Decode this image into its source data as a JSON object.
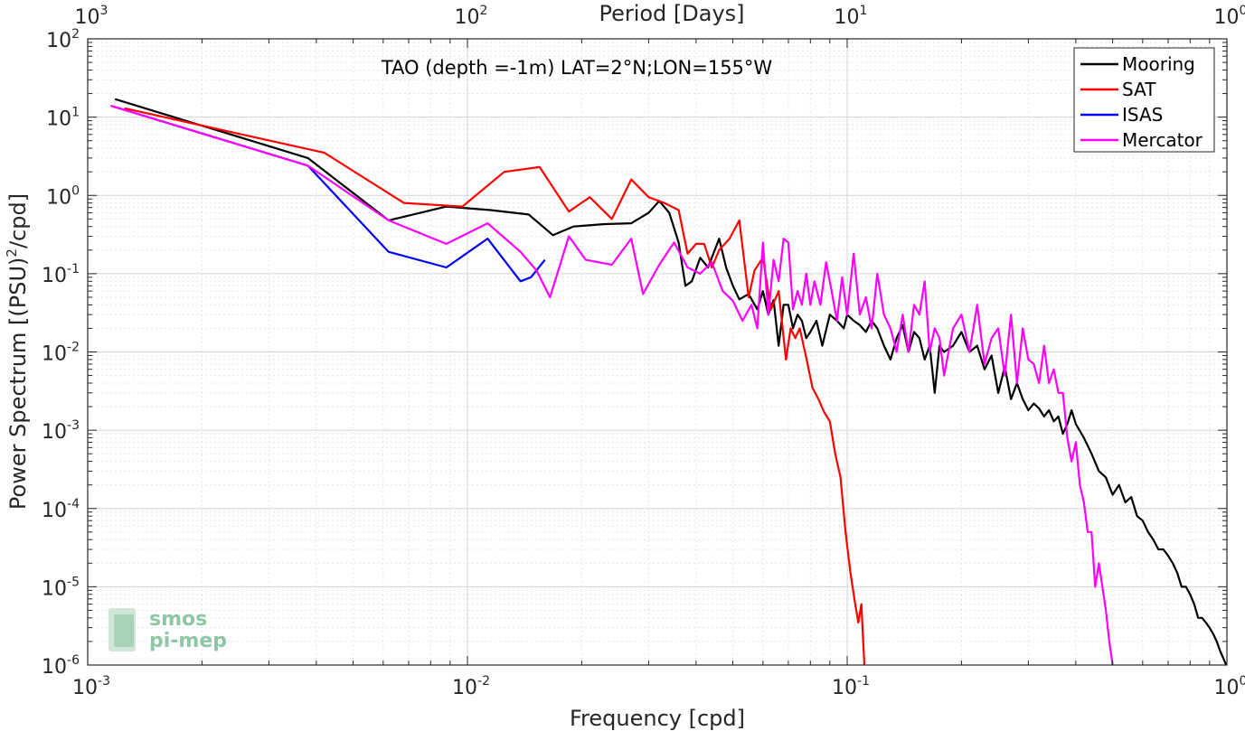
{
  "chart_data": {
    "type": "line",
    "title": "TAO (depth =-1m) LAT=2°N;LON=155°W",
    "xlabel": "Frequency [cpd]",
    "ylabel": "Power Spectrum [(PSU)²/cpd]",
    "ylabel_parts": {
      "main": "Power Spectrum [(PSU)",
      "sup": "2",
      "tail": "/cpd]"
    },
    "x2label": "Period [Days]",
    "xscale": "log",
    "yscale": "log",
    "xlim": [
      0.001,
      1
    ],
    "ylim": [
      1e-06,
      100
    ],
    "grid": true,
    "legend_position": "top-right",
    "x_ticks": [
      {
        "value": 0.001,
        "base": "10",
        "exp": "-3"
      },
      {
        "value": 0.01,
        "base": "10",
        "exp": "-2"
      },
      {
        "value": 0.1,
        "base": "10",
        "exp": "-1"
      },
      {
        "value": 1,
        "base": "10",
        "exp": "0"
      }
    ],
    "x2_ticks": [
      {
        "value": 1000,
        "base": "10",
        "exp": "3"
      },
      {
        "value": 100,
        "base": "10",
        "exp": "2"
      },
      {
        "value": 10,
        "base": "10",
        "exp": "1"
      },
      {
        "value": 1,
        "base": "10",
        "exp": "0"
      }
    ],
    "y_ticks": [
      {
        "value": 1e-06,
        "base": "10",
        "exp": "-6"
      },
      {
        "value": 1e-05,
        "base": "10",
        "exp": "-5"
      },
      {
        "value": 0.0001,
        "base": "10",
        "exp": "-4"
      },
      {
        "value": 0.001,
        "base": "10",
        "exp": "-3"
      },
      {
        "value": 0.01,
        "base": "10",
        "exp": "-2"
      },
      {
        "value": 0.1,
        "base": "10",
        "exp": "-1"
      },
      {
        "value": 1,
        "base": "10",
        "exp": "0"
      },
      {
        "value": 10,
        "base": "10",
        "exp": "1"
      },
      {
        "value": 100,
        "base": "10",
        "exp": "2"
      }
    ],
    "series": [
      {
        "name": "Mooring",
        "color": "#000000",
        "x": [
          0.00118,
          0.0038,
          0.0062,
          0.0088,
          0.0115,
          0.0145,
          0.0168,
          0.019,
          0.023,
          0.027,
          0.03,
          0.032,
          0.034,
          0.036,
          0.0375,
          0.039,
          0.041,
          0.043,
          0.046,
          0.048,
          0.05,
          0.052,
          0.055,
          0.058,
          0.06,
          0.062,
          0.064,
          0.066,
          0.068,
          0.07,
          0.072,
          0.074,
          0.076,
          0.078,
          0.08,
          0.083,
          0.086,
          0.09,
          0.094,
          0.098,
          0.1,
          0.104,
          0.108,
          0.112,
          0.116,
          0.12,
          0.125,
          0.13,
          0.135,
          0.14,
          0.145,
          0.15,
          0.155,
          0.16,
          0.165,
          0.17,
          0.175,
          0.18,
          0.19,
          0.2,
          0.21,
          0.22,
          0.23,
          0.24,
          0.25,
          0.26,
          0.27,
          0.28,
          0.29,
          0.3,
          0.31,
          0.32,
          0.33,
          0.34,
          0.35,
          0.36,
          0.37,
          0.38,
          0.39,
          0.4,
          0.42,
          0.44,
          0.46,
          0.48,
          0.5,
          0.52,
          0.54,
          0.56,
          0.58,
          0.6,
          0.62,
          0.64,
          0.66,
          0.68,
          0.7,
          0.72,
          0.74,
          0.76,
          0.78,
          0.8,
          0.82,
          0.84,
          0.86,
          0.88,
          0.9,
          0.92,
          0.94,
          0.96,
          0.98,
          0.995
        ],
        "y": [
          17,
          3.0,
          0.48,
          0.72,
          0.65,
          0.57,
          0.31,
          0.4,
          0.43,
          0.44,
          0.6,
          0.85,
          0.6,
          0.25,
          0.07,
          0.08,
          0.16,
          0.12,
          0.28,
          0.12,
          0.07,
          0.047,
          0.055,
          0.035,
          0.06,
          0.03,
          0.046,
          0.012,
          0.04,
          0.04,
          0.02,
          0.03,
          0.025,
          0.015,
          0.018,
          0.025,
          0.012,
          0.03,
          0.025,
          0.02,
          0.03,
          0.025,
          0.022,
          0.018,
          0.025,
          0.02,
          0.012,
          0.008,
          0.015,
          0.022,
          0.01,
          0.018,
          0.015,
          0.008,
          0.012,
          0.003,
          0.012,
          0.01,
          0.012,
          0.018,
          0.01,
          0.012,
          0.006,
          0.009,
          0.003,
          0.0065,
          0.0025,
          0.004,
          0.0025,
          0.0018,
          0.0022,
          0.0019,
          0.0015,
          0.0018,
          0.0013,
          0.0015,
          0.0009,
          0.0012,
          0.0018,
          0.0012,
          0.0008,
          0.0005,
          0.0003,
          0.00025,
          0.00015,
          0.0002,
          0.00012,
          0.00014,
          8e-05,
          7e-05,
          5e-05,
          4e-05,
          3e-05,
          3e-05,
          2.5e-05,
          2e-05,
          1.5e-05,
          1e-05,
          1e-05,
          8e-06,
          6e-06,
          4e-06,
          4e-06,
          3.5e-06,
          3e-06,
          2.5e-06,
          2e-06,
          1.5e-06,
          1.2e-06,
          1e-06
        ]
      },
      {
        "name": "SAT",
        "color": "#ff0000",
        "x": [
          0.00125,
          0.0042,
          0.0068,
          0.0097,
          0.0125,
          0.0155,
          0.0185,
          0.021,
          0.024,
          0.027,
          0.03,
          0.033,
          0.036,
          0.038,
          0.04,
          0.042,
          0.044,
          0.046,
          0.049,
          0.052,
          0.055,
          0.057,
          0.06,
          0.063,
          0.066,
          0.069,
          0.071,
          0.073,
          0.075,
          0.078,
          0.081,
          0.084,
          0.087,
          0.09,
          0.093,
          0.096,
          0.099,
          0.102,
          0.105,
          0.107,
          0.109,
          0.111
        ],
        "y": [
          13,
          3.5,
          0.8,
          0.72,
          2.0,
          2.3,
          0.62,
          0.95,
          0.5,
          1.6,
          0.95,
          0.8,
          0.65,
          0.18,
          0.24,
          0.24,
          0.12,
          0.2,
          0.28,
          0.48,
          0.05,
          0.11,
          0.16,
          0.035,
          0.06,
          0.008,
          0.02,
          0.015,
          0.02,
          0.0085,
          0.0035,
          0.0025,
          0.0017,
          0.0013,
          0.0005,
          0.00025,
          5e-05,
          1.5e-05,
          6e-06,
          3.5e-06,
          6e-06,
          1e-06
        ]
      },
      {
        "name": "ISAS",
        "color": "#0000ff",
        "x": [
          0.00115,
          0.0038,
          0.0062,
          0.0088,
          0.0113,
          0.0138,
          0.0147,
          0.016
        ],
        "y": [
          14,
          2.4,
          0.19,
          0.12,
          0.28,
          0.08,
          0.09,
          0.15
        ]
      },
      {
        "name": "Mercator",
        "color": "#ff00ff",
        "x": [
          0.00115,
          0.0038,
          0.0062,
          0.0088,
          0.0113,
          0.0138,
          0.0152,
          0.0165,
          0.0185,
          0.0205,
          0.024,
          0.027,
          0.029,
          0.032,
          0.035,
          0.038,
          0.041,
          0.044,
          0.047,
          0.05,
          0.053,
          0.056,
          0.058,
          0.06,
          0.062,
          0.064,
          0.066,
          0.068,
          0.07,
          0.072,
          0.074,
          0.076,
          0.078,
          0.08,
          0.082,
          0.085,
          0.088,
          0.091,
          0.094,
          0.097,
          0.1,
          0.104,
          0.108,
          0.112,
          0.116,
          0.12,
          0.125,
          0.13,
          0.135,
          0.14,
          0.145,
          0.15,
          0.155,
          0.16,
          0.165,
          0.17,
          0.175,
          0.18,
          0.19,
          0.2,
          0.21,
          0.22,
          0.23,
          0.24,
          0.25,
          0.26,
          0.27,
          0.28,
          0.29,
          0.3,
          0.31,
          0.32,
          0.33,
          0.34,
          0.35,
          0.36,
          0.37,
          0.38,
          0.39,
          0.4,
          0.41,
          0.42,
          0.43,
          0.44,
          0.45,
          0.46,
          0.47,
          0.48,
          0.49,
          0.5
        ],
        "y": [
          14,
          2.4,
          0.48,
          0.24,
          0.44,
          0.19,
          0.11,
          0.05,
          0.3,
          0.15,
          0.13,
          0.28,
          0.055,
          0.13,
          0.25,
          0.12,
          0.1,
          0.14,
          0.06,
          0.045,
          0.025,
          0.04,
          0.02,
          0.25,
          0.03,
          0.15,
          0.08,
          0.28,
          0.25,
          0.035,
          0.06,
          0.04,
          0.1,
          0.04,
          0.08,
          0.04,
          0.14,
          0.06,
          0.025,
          0.09,
          0.03,
          0.18,
          0.03,
          0.05,
          0.02,
          0.1,
          0.03,
          0.02,
          0.01,
          0.03,
          0.01,
          0.04,
          0.03,
          0.08,
          0.01,
          0.02,
          0.015,
          0.005,
          0.02,
          0.03,
          0.01,
          0.04,
          0.007,
          0.015,
          0.02,
          0.005,
          0.03,
          0.004,
          0.02,
          0.008,
          0.007,
          0.004,
          0.012,
          0.004,
          0.006,
          0.003,
          0.003,
          0.0008,
          0.0004,
          0.0007,
          0.0002,
          0.00012,
          5e-05,
          5e-05,
          1e-05,
          2e-05,
          1e-05,
          5e-06,
          2e-06,
          1e-06
        ]
      }
    ]
  },
  "watermark": {
    "line1": "smos",
    "line2": "pi-mep"
  }
}
